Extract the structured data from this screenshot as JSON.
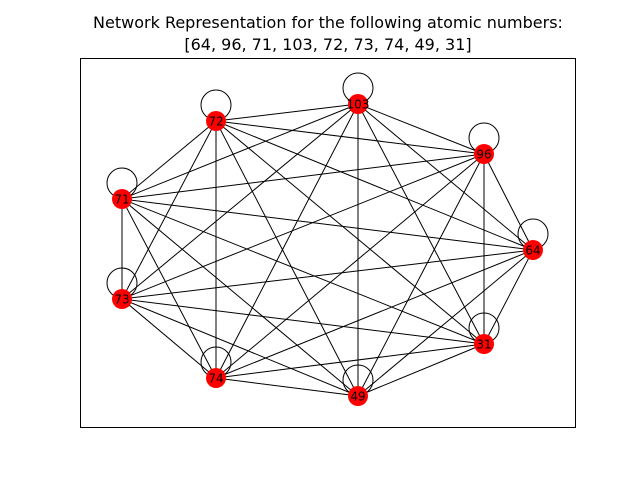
{
  "title": {
    "line1": "Network Representation for the following atomic numbers:",
    "line2": "[64, 96, 71, 103, 72, 73, 74, 49, 31]"
  },
  "graph": {
    "node_color": "#ff0000",
    "edge_color": "#000000",
    "nodes": [
      "64",
      "96",
      "71",
      "103",
      "72",
      "73",
      "74",
      "49",
      "31"
    ],
    "self_loops": [
      "64",
      "96",
      "71",
      "103",
      "72",
      "73",
      "74",
      "49",
      "31"
    ],
    "edges": [
      [
        "103",
        "72"
      ],
      [
        "103",
        "96"
      ],
      [
        "103",
        "71"
      ],
      [
        "103",
        "73"
      ],
      [
        "103",
        "49"
      ],
      [
        "103",
        "31"
      ],
      [
        "103",
        "64"
      ],
      [
        "103",
        "74"
      ],
      [
        "72",
        "96"
      ],
      [
        "72",
        "71"
      ],
      [
        "72",
        "73"
      ],
      [
        "72",
        "74"
      ],
      [
        "72",
        "49"
      ],
      [
        "72",
        "31"
      ],
      [
        "72",
        "64"
      ],
      [
        "96",
        "71"
      ],
      [
        "96",
        "73"
      ],
      [
        "96",
        "74"
      ],
      [
        "96",
        "49"
      ],
      [
        "96",
        "31"
      ],
      [
        "96",
        "64"
      ],
      [
        "71",
        "73"
      ],
      [
        "71",
        "74"
      ],
      [
        "71",
        "49"
      ],
      [
        "71",
        "31"
      ],
      [
        "71",
        "64"
      ],
      [
        "73",
        "74"
      ],
      [
        "73",
        "49"
      ],
      [
        "73",
        "31"
      ],
      [
        "73",
        "64"
      ],
      [
        "74",
        "49"
      ],
      [
        "74",
        "31"
      ],
      [
        "74",
        "64"
      ],
      [
        "49",
        "31"
      ],
      [
        "49",
        "64"
      ],
      [
        "31",
        "64"
      ]
    ]
  }
}
